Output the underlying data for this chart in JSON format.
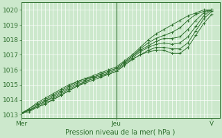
{
  "title": "",
  "xlabel": "Pression niveau de la mer( hPa )",
  "ylabel": "",
  "bg_color": "#cce8cc",
  "plot_bg_color": "#cce8cc",
  "grid_color": "#ffffff",
  "line_color": "#2d6e2d",
  "ylim": [
    1012.8,
    1020.5
  ],
  "xlim": [
    0,
    100
  ],
  "yticks": [
    1013,
    1014,
    1015,
    1016,
    1017,
    1018,
    1019,
    1020
  ],
  "xtick_labels": [
    "Mer",
    "Jeu",
    "V"
  ],
  "xtick_positions": [
    0,
    48,
    96
  ],
  "n_vgrid": 48,
  "lines": [
    {
      "x": [
        0,
        4,
        8,
        12,
        16,
        20,
        24,
        28,
        32,
        36,
        40,
        44,
        48,
        52,
        56,
        60,
        64,
        68,
        72,
        76,
        80,
        84,
        88,
        92,
        96
      ],
      "y": [
        1013.1,
        1013.4,
        1013.8,
        1014.1,
        1014.4,
        1014.7,
        1015.0,
        1015.2,
        1015.4,
        1015.6,
        1015.8,
        1016.0,
        1016.2,
        1016.6,
        1017.0,
        1017.5,
        1018.0,
        1018.4,
        1018.7,
        1019.0,
        1019.3,
        1019.6,
        1019.8,
        1020.0,
        1020.0
      ]
    },
    {
      "x": [
        0,
        4,
        8,
        12,
        16,
        20,
        24,
        28,
        32,
        36,
        40,
        44,
        48,
        52,
        56,
        60,
        64,
        68,
        72,
        76,
        80,
        84,
        88,
        92,
        96
      ],
      "y": [
        1013.1,
        1013.4,
        1013.7,
        1014.0,
        1014.3,
        1014.6,
        1014.9,
        1015.2,
        1015.4,
        1015.5,
        1015.7,
        1015.9,
        1016.1,
        1016.5,
        1016.9,
        1017.4,
        1017.8,
        1018.1,
        1018.3,
        1018.5,
        1018.8,
        1019.3,
        1019.7,
        1019.9,
        1020.0
      ]
    },
    {
      "x": [
        0,
        4,
        8,
        12,
        16,
        20,
        24,
        28,
        32,
        36,
        40,
        44,
        48,
        52,
        56,
        60,
        64,
        68,
        72,
        76,
        80,
        84,
        88,
        92,
        96
      ],
      "y": [
        1013.1,
        1013.3,
        1013.6,
        1013.9,
        1014.2,
        1014.5,
        1014.8,
        1015.1,
        1015.3,
        1015.5,
        1015.7,
        1015.9,
        1016.1,
        1016.5,
        1016.9,
        1017.3,
        1017.6,
        1017.9,
        1018.1,
        1018.1,
        1018.2,
        1018.7,
        1019.3,
        1019.8,
        1020.0
      ]
    },
    {
      "x": [
        0,
        4,
        8,
        12,
        16,
        20,
        24,
        28,
        32,
        36,
        40,
        44,
        48,
        52,
        56,
        60,
        64,
        68,
        72,
        76,
        80,
        84,
        88,
        92,
        96
      ],
      "y": [
        1013.1,
        1013.3,
        1013.6,
        1013.9,
        1014.1,
        1014.4,
        1014.7,
        1015.0,
        1015.2,
        1015.4,
        1015.6,
        1015.8,
        1016.0,
        1016.4,
        1016.8,
        1017.2,
        1017.5,
        1017.7,
        1017.8,
        1017.7,
        1017.8,
        1018.2,
        1018.9,
        1019.6,
        1020.0
      ]
    },
    {
      "x": [
        0,
        4,
        8,
        12,
        16,
        20,
        24,
        28,
        32,
        36,
        40,
        44,
        48,
        52,
        56,
        60,
        64,
        68,
        72,
        76,
        80,
        84,
        88,
        92,
        96
      ],
      "y": [
        1013.1,
        1013.3,
        1013.5,
        1013.8,
        1014.0,
        1014.3,
        1014.6,
        1014.9,
        1015.2,
        1015.4,
        1015.6,
        1015.7,
        1015.9,
        1016.3,
        1016.7,
        1017.0,
        1017.3,
        1017.5,
        1017.5,
        1017.4,
        1017.4,
        1017.8,
        1018.6,
        1019.4,
        1019.9
      ]
    },
    {
      "x": [
        0,
        4,
        8,
        12,
        16,
        20,
        24,
        28,
        32,
        36,
        40,
        44,
        48,
        52,
        56,
        60,
        64,
        68,
        72,
        76,
        80,
        84,
        88,
        92,
        96
      ],
      "y": [
        1013.1,
        1013.2,
        1013.5,
        1013.7,
        1014.0,
        1014.3,
        1014.6,
        1014.9,
        1015.1,
        1015.3,
        1015.5,
        1015.7,
        1015.9,
        1016.3,
        1016.7,
        1017.0,
        1017.2,
        1017.3,
        1017.3,
        1017.1,
        1017.1,
        1017.5,
        1018.3,
        1019.1,
        1019.7
      ]
    }
  ],
  "marker": "+",
  "markersize": 3.5,
  "linewidth": 0.7
}
